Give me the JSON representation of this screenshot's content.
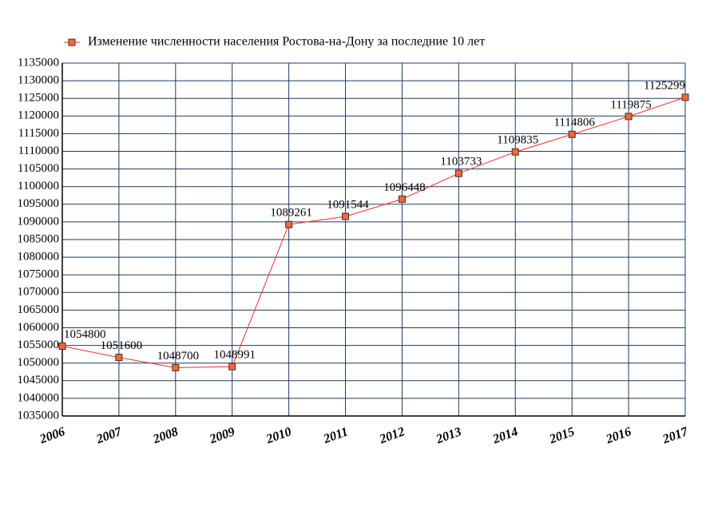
{
  "chart_data": {
    "type": "line",
    "x": [
      2006,
      2007,
      2008,
      2009,
      2010,
      2011,
      2012,
      2013,
      2014,
      2015,
      2016,
      2017
    ],
    "xlim": [
      2006,
      2017
    ],
    "xticks": [
      2006,
      2007,
      2008,
      2009,
      2010,
      2011,
      2012,
      2013,
      2014,
      2015,
      2016,
      2017
    ],
    "ylim": [
      1035000,
      1135000
    ],
    "yticks": [
      1035000,
      1040000,
      1045000,
      1050000,
      1055000,
      1060000,
      1065000,
      1070000,
      1075000,
      1080000,
      1085000,
      1090000,
      1095000,
      1100000,
      1105000,
      1110000,
      1115000,
      1120000,
      1125000,
      1130000,
      1135000
    ],
    "grid": true,
    "legend": "top",
    "series": [
      {
        "name": "Изменение численности населения Ростова-на-Дону за последние 10 лет",
        "color": "#ff2a2a",
        "marker_color": "#ff6633",
        "values": [
          1054800,
          1051600,
          1048700,
          1048991,
          1089261,
          1091544,
          1096448,
          1103733,
          1109835,
          1114806,
          1119875,
          1125299
        ]
      }
    ]
  }
}
